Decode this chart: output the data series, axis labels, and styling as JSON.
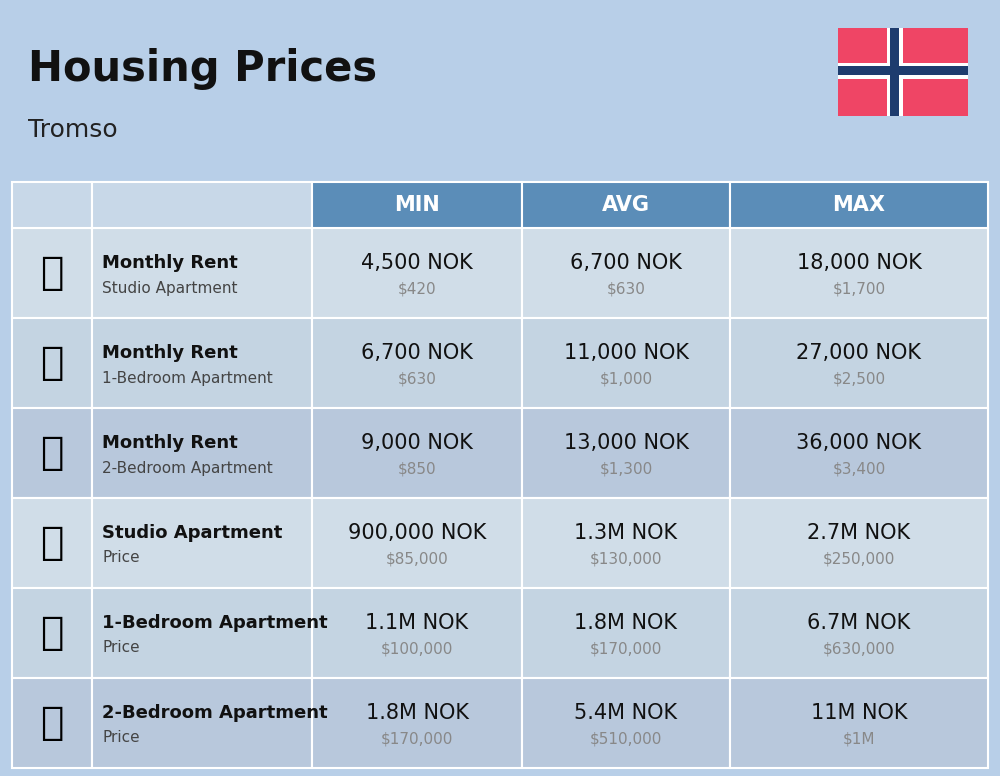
{
  "title": "Housing Prices",
  "subtitle": "Tromso",
  "bg_color": "#b8cfe8",
  "header_bg": "#5b8db8",
  "row_bg_even": "#cfdce8",
  "row_bg_odd": "#bfcfde",
  "header_labels": [
    "",
    "",
    "MIN",
    "AVG",
    "MAX"
  ],
  "rows": [
    {
      "icon": "🏢",
      "icon_type": "studio_blue",
      "bold_text": "Monthly Rent",
      "sub_text": "Studio Apartment",
      "min_nok": "4,500 NOK",
      "min_usd": "$420",
      "avg_nok": "6,700 NOK",
      "avg_usd": "$630",
      "max_nok": "18,000 NOK",
      "max_usd": "$1,700"
    },
    {
      "icon": "🏘",
      "icon_type": "apt_orange",
      "bold_text": "Monthly Rent",
      "sub_text": "1-Bedroom Apartment",
      "min_nok": "6,700 NOK",
      "min_usd": "$630",
      "avg_nok": "11,000 NOK",
      "avg_usd": "$1,000",
      "max_nok": "27,000 NOK",
      "max_usd": "$2,500"
    },
    {
      "icon": "🏠",
      "icon_type": "apt_beige",
      "bold_text": "Monthly Rent",
      "sub_text": "2-Bedroom Apartment",
      "min_nok": "9,000 NOK",
      "min_usd": "$850",
      "avg_nok": "13,000 NOK",
      "avg_usd": "$1,300",
      "max_nok": "36,000 NOK",
      "max_usd": "$3,400"
    },
    {
      "icon": "🏢",
      "icon_type": "studio_blue2",
      "bold_text": "Studio Apartment",
      "sub_text": "Price",
      "min_nok": "900,000 NOK",
      "min_usd": "$85,000",
      "avg_nok": "1.3M NOK",
      "avg_usd": "$130,000",
      "max_nok": "2.7M NOK",
      "max_usd": "$250,000"
    },
    {
      "icon": "🏘",
      "icon_type": "apt_orange2",
      "bold_text": "1-Bedroom Apartment",
      "sub_text": "Price",
      "min_nok": "1.1M NOK",
      "min_usd": "$100,000",
      "avg_nok": "1.8M NOK",
      "avg_usd": "$170,000",
      "max_nok": "6.7M NOK",
      "max_usd": "$630,000"
    },
    {
      "icon": "🏠",
      "icon_type": "apt_brown",
      "bold_text": "2-Bedroom Apartment",
      "sub_text": "Price",
      "min_nok": "1.8M NOK",
      "min_usd": "$170,000",
      "avg_nok": "5.4M NOK",
      "avg_usd": "$510,000",
      "max_nok": "11M NOK",
      "max_usd": "$1M"
    }
  ],
  "nok_fontsize": 15,
  "usd_fontsize": 11,
  "usd_color": "#888888",
  "bold_fontsize": 13,
  "sub_fontsize": 11,
  "norway_flag_red": "#EF4565",
  "norway_flag_blue": "#1E3C6E"
}
